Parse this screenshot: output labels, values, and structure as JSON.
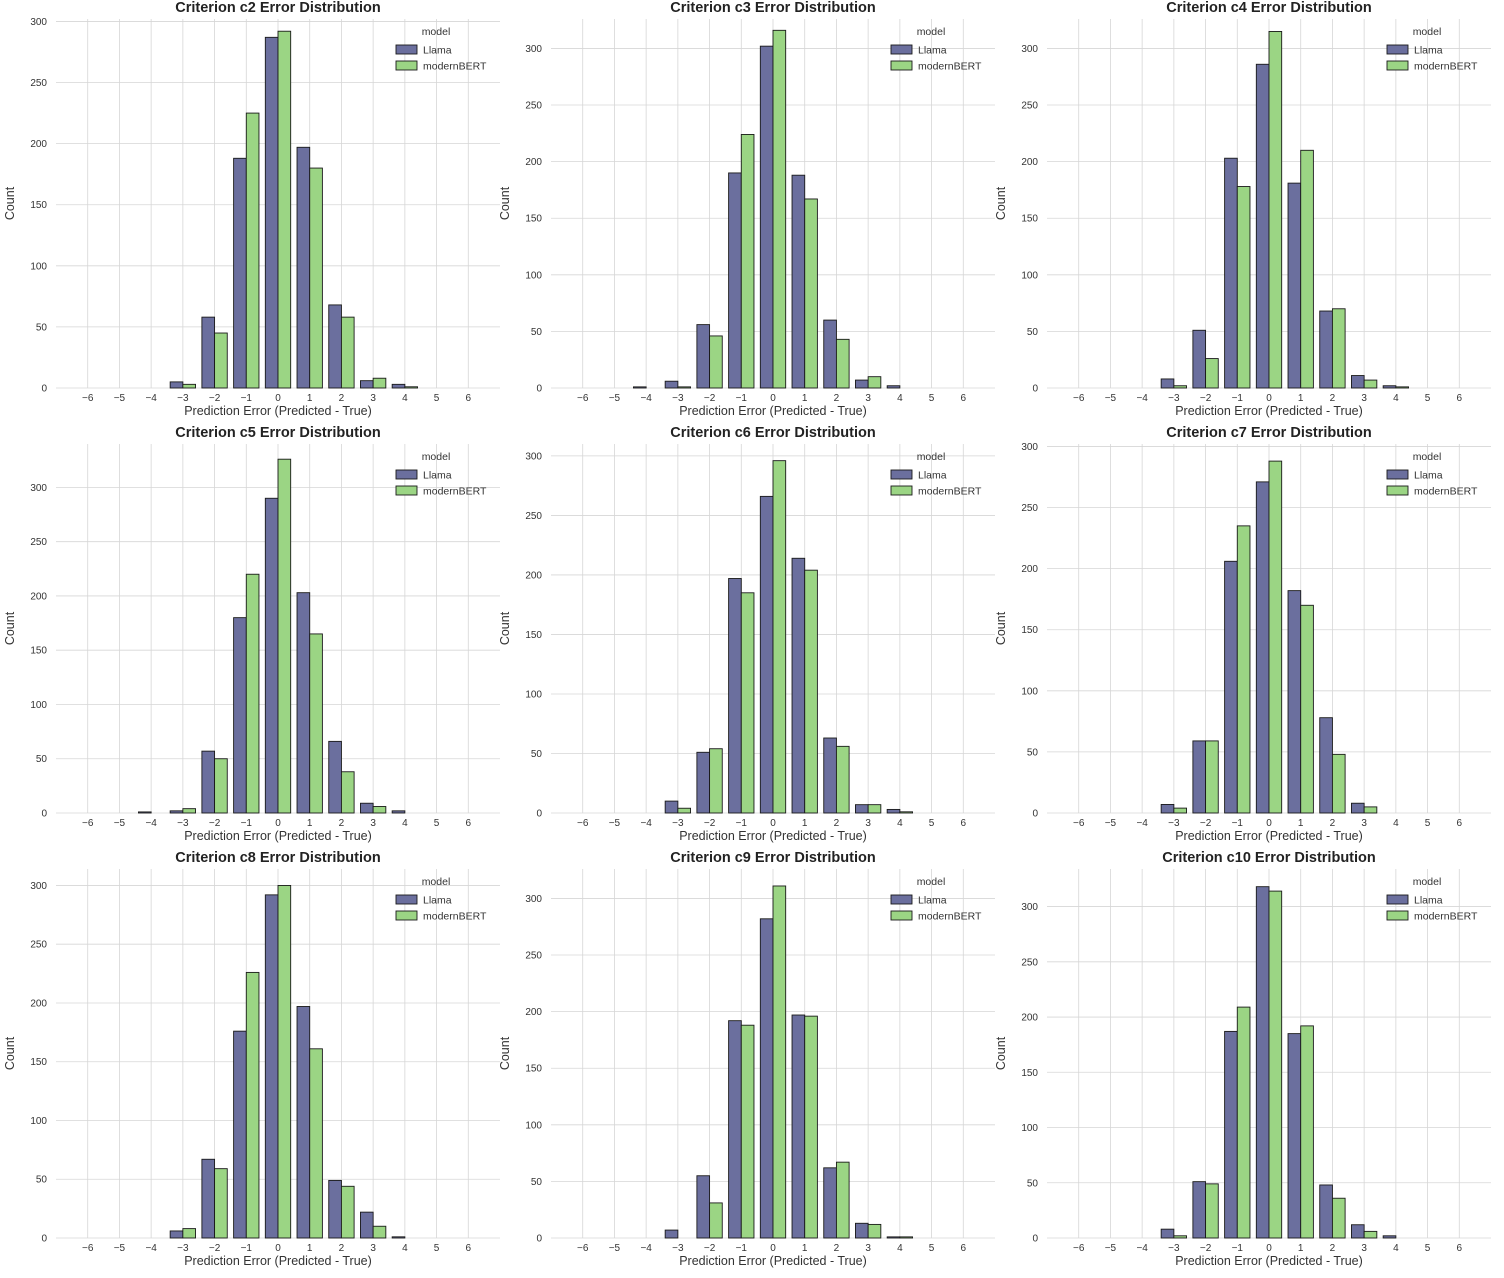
{
  "style": {
    "colors": {
      "Llama": "#6b6f9e",
      "modernBERT": "#9bd584",
      "grid": "#d6d6d6",
      "edge": "#1a1a1a"
    }
  },
  "chart_data": [
    {
      "type": "bar",
      "title": "Criterion c2 Error Distribution",
      "xlabel": "Prediction Error (Predicted - True)",
      "ylabel": "Count",
      "categories": [
        -6,
        -5,
        -4,
        -3,
        -2,
        -1,
        0,
        1,
        2,
        3,
        4,
        5,
        6
      ],
      "ylim": [
        0,
        302
      ],
      "yticks": [
        0,
        50,
        100,
        150,
        200,
        250,
        300
      ],
      "grid": true,
      "legend_title": "model",
      "legend_position": "top-right",
      "series": [
        {
          "name": "Llama",
          "values": [
            0,
            0,
            0,
            5,
            58,
            188,
            287,
            197,
            68,
            6,
            3,
            0,
            0
          ]
        },
        {
          "name": "modernBERT",
          "values": [
            0,
            0,
            0,
            3,
            45,
            225,
            292,
            180,
            58,
            8,
            1,
            0,
            0
          ]
        }
      ]
    },
    {
      "type": "bar",
      "title": "Criterion c3 Error Distribution",
      "xlabel": "Prediction Error (Predicted - True)",
      "ylabel": "Count",
      "categories": [
        -6,
        -5,
        -4,
        -3,
        -2,
        -1,
        0,
        1,
        2,
        3,
        4,
        5,
        6
      ],
      "ylim": [
        0,
        326
      ],
      "yticks": [
        0,
        50,
        100,
        150,
        200,
        250,
        300
      ],
      "grid": true,
      "legend_title": "model",
      "legend_position": "top-right",
      "series": [
        {
          "name": "Llama",
          "values": [
            0,
            0,
            1,
            6,
            56,
            190,
            302,
            188,
            60,
            7,
            2,
            0,
            0
          ]
        },
        {
          "name": "modernBERT",
          "values": [
            0,
            0,
            0,
            1,
            46,
            224,
            316,
            167,
            43,
            10,
            0,
            0,
            0
          ]
        }
      ]
    },
    {
      "type": "bar",
      "title": "Criterion c4 Error Distribution",
      "xlabel": "Prediction Error (Predicted - True)",
      "ylabel": "Count",
      "categories": [
        -6,
        -5,
        -4,
        -3,
        -2,
        -1,
        0,
        1,
        2,
        3,
        4,
        5,
        6
      ],
      "ylim": [
        0,
        326
      ],
      "yticks": [
        0,
        50,
        100,
        150,
        200,
        250,
        300
      ],
      "grid": true,
      "legend_title": "model",
      "legend_position": "top-right",
      "series": [
        {
          "name": "Llama",
          "values": [
            0,
            0,
            0,
            8,
            51,
            203,
            286,
            181,
            68,
            11,
            2,
            0,
            0
          ]
        },
        {
          "name": "modernBERT",
          "values": [
            0,
            0,
            0,
            2,
            26,
            178,
            315,
            210,
            70,
            7,
            1,
            0,
            0
          ]
        }
      ]
    },
    {
      "type": "bar",
      "title": "Criterion c5 Error Distribution",
      "xlabel": "Prediction Error (Predicted - True)",
      "ylabel": "Count",
      "categories": [
        -6,
        -5,
        -4,
        -3,
        -2,
        -1,
        0,
        1,
        2,
        3,
        4,
        5,
        6
      ],
      "ylim": [
        0,
        340
      ],
      "yticks": [
        0,
        50,
        100,
        150,
        200,
        250,
        300
      ],
      "grid": true,
      "legend_title": "model",
      "legend_position": "top-right",
      "series": [
        {
          "name": "Llama",
          "values": [
            0,
            0,
            1,
            2,
            57,
            180,
            290,
            203,
            66,
            9,
            2,
            0,
            0
          ]
        },
        {
          "name": "modernBERT",
          "values": [
            0,
            0,
            0,
            4,
            50,
            220,
            326,
            165,
            38,
            6,
            0,
            0,
            0
          ]
        }
      ]
    },
    {
      "type": "bar",
      "title": "Criterion c6 Error Distribution",
      "xlabel": "Prediction Error (Predicted - True)",
      "ylabel": "Count",
      "categories": [
        -6,
        -5,
        -4,
        -3,
        -2,
        -1,
        0,
        1,
        2,
        3,
        4,
        5,
        6
      ],
      "ylim": [
        0,
        310
      ],
      "yticks": [
        0,
        50,
        100,
        150,
        200,
        250,
        300
      ],
      "grid": true,
      "legend_title": "model",
      "legend_position": "top-right",
      "series": [
        {
          "name": "Llama",
          "values": [
            0,
            0,
            0,
            10,
            51,
            197,
            266,
            214,
            63,
            7,
            3,
            0,
            0
          ]
        },
        {
          "name": "modernBERT",
          "values": [
            0,
            0,
            0,
            4,
            54,
            185,
            296,
            204,
            56,
            7,
            1,
            0,
            0
          ]
        }
      ]
    },
    {
      "type": "bar",
      "title": "Criterion c7 Error Distribution",
      "xlabel": "Prediction Error (Predicted - True)",
      "ylabel": "Count",
      "categories": [
        -6,
        -5,
        -4,
        -3,
        -2,
        -1,
        0,
        1,
        2,
        3,
        4,
        5,
        6
      ],
      "ylim": [
        0,
        302
      ],
      "yticks": [
        0,
        50,
        100,
        150,
        200,
        250,
        300
      ],
      "grid": true,
      "legend_title": "model",
      "legend_position": "top-right",
      "series": [
        {
          "name": "Llama",
          "values": [
            0,
            0,
            0,
            7,
            59,
            206,
            271,
            182,
            78,
            8,
            0,
            0,
            0
          ]
        },
        {
          "name": "modernBERT",
          "values": [
            0,
            0,
            0,
            4,
            59,
            235,
            288,
            170,
            48,
            5,
            0,
            0,
            0
          ]
        }
      ]
    },
    {
      "type": "bar",
      "title": "Criterion c8 Error Distribution",
      "xlabel": "Prediction Error (Predicted - True)",
      "ylabel": "Count",
      "categories": [
        -6,
        -5,
        -4,
        -3,
        -2,
        -1,
        0,
        1,
        2,
        3,
        4,
        5,
        6
      ],
      "ylim": [
        0,
        314
      ],
      "yticks": [
        0,
        50,
        100,
        150,
        200,
        250,
        300
      ],
      "grid": true,
      "legend_title": "model",
      "legend_position": "top-right",
      "series": [
        {
          "name": "Llama",
          "values": [
            0,
            0,
            0,
            6,
            67,
            176,
            292,
            197,
            49,
            22,
            1,
            0,
            0
          ]
        },
        {
          "name": "modernBERT",
          "values": [
            0,
            0,
            0,
            8,
            59,
            226,
            300,
            161,
            44,
            10,
            0,
            0,
            0
          ]
        }
      ]
    },
    {
      "type": "bar",
      "title": "Criterion c9 Error Distribution",
      "xlabel": "Prediction Error (Predicted - True)",
      "ylabel": "Count",
      "categories": [
        -6,
        -5,
        -4,
        -3,
        -2,
        -1,
        0,
        1,
        2,
        3,
        4,
        5,
        6
      ],
      "ylim": [
        0,
        326
      ],
      "yticks": [
        0,
        50,
        100,
        150,
        200,
        250,
        300
      ],
      "grid": true,
      "legend_title": "model",
      "legend_position": "top-right",
      "series": [
        {
          "name": "Llama",
          "values": [
            0,
            0,
            0,
            7,
            55,
            192,
            282,
            197,
            62,
            13,
            1,
            0,
            0
          ]
        },
        {
          "name": "modernBERT",
          "values": [
            0,
            0,
            0,
            0,
            31,
            188,
            311,
            196,
            67,
            12,
            1,
            0,
            0
          ]
        }
      ]
    },
    {
      "type": "bar",
      "title": "Criterion c10 Error Distribution",
      "xlabel": "Prediction Error (Predicted - True)",
      "ylabel": "Count",
      "categories": [
        -6,
        -5,
        -4,
        -3,
        -2,
        -1,
        0,
        1,
        2,
        3,
        4,
        5,
        6
      ],
      "ylim": [
        0,
        334
      ],
      "yticks": [
        0,
        50,
        100,
        150,
        200,
        250,
        300
      ],
      "grid": true,
      "legend_title": "model",
      "legend_position": "top-right",
      "series": [
        {
          "name": "Llama",
          "values": [
            0,
            0,
            0,
            8,
            51,
            187,
            318,
            185,
            48,
            12,
            2,
            0,
            0
          ]
        },
        {
          "name": "modernBERT",
          "values": [
            0,
            0,
            0,
            2,
            49,
            209,
            314,
            192,
            36,
            6,
            0,
            0,
            0
          ]
        }
      ]
    }
  ]
}
